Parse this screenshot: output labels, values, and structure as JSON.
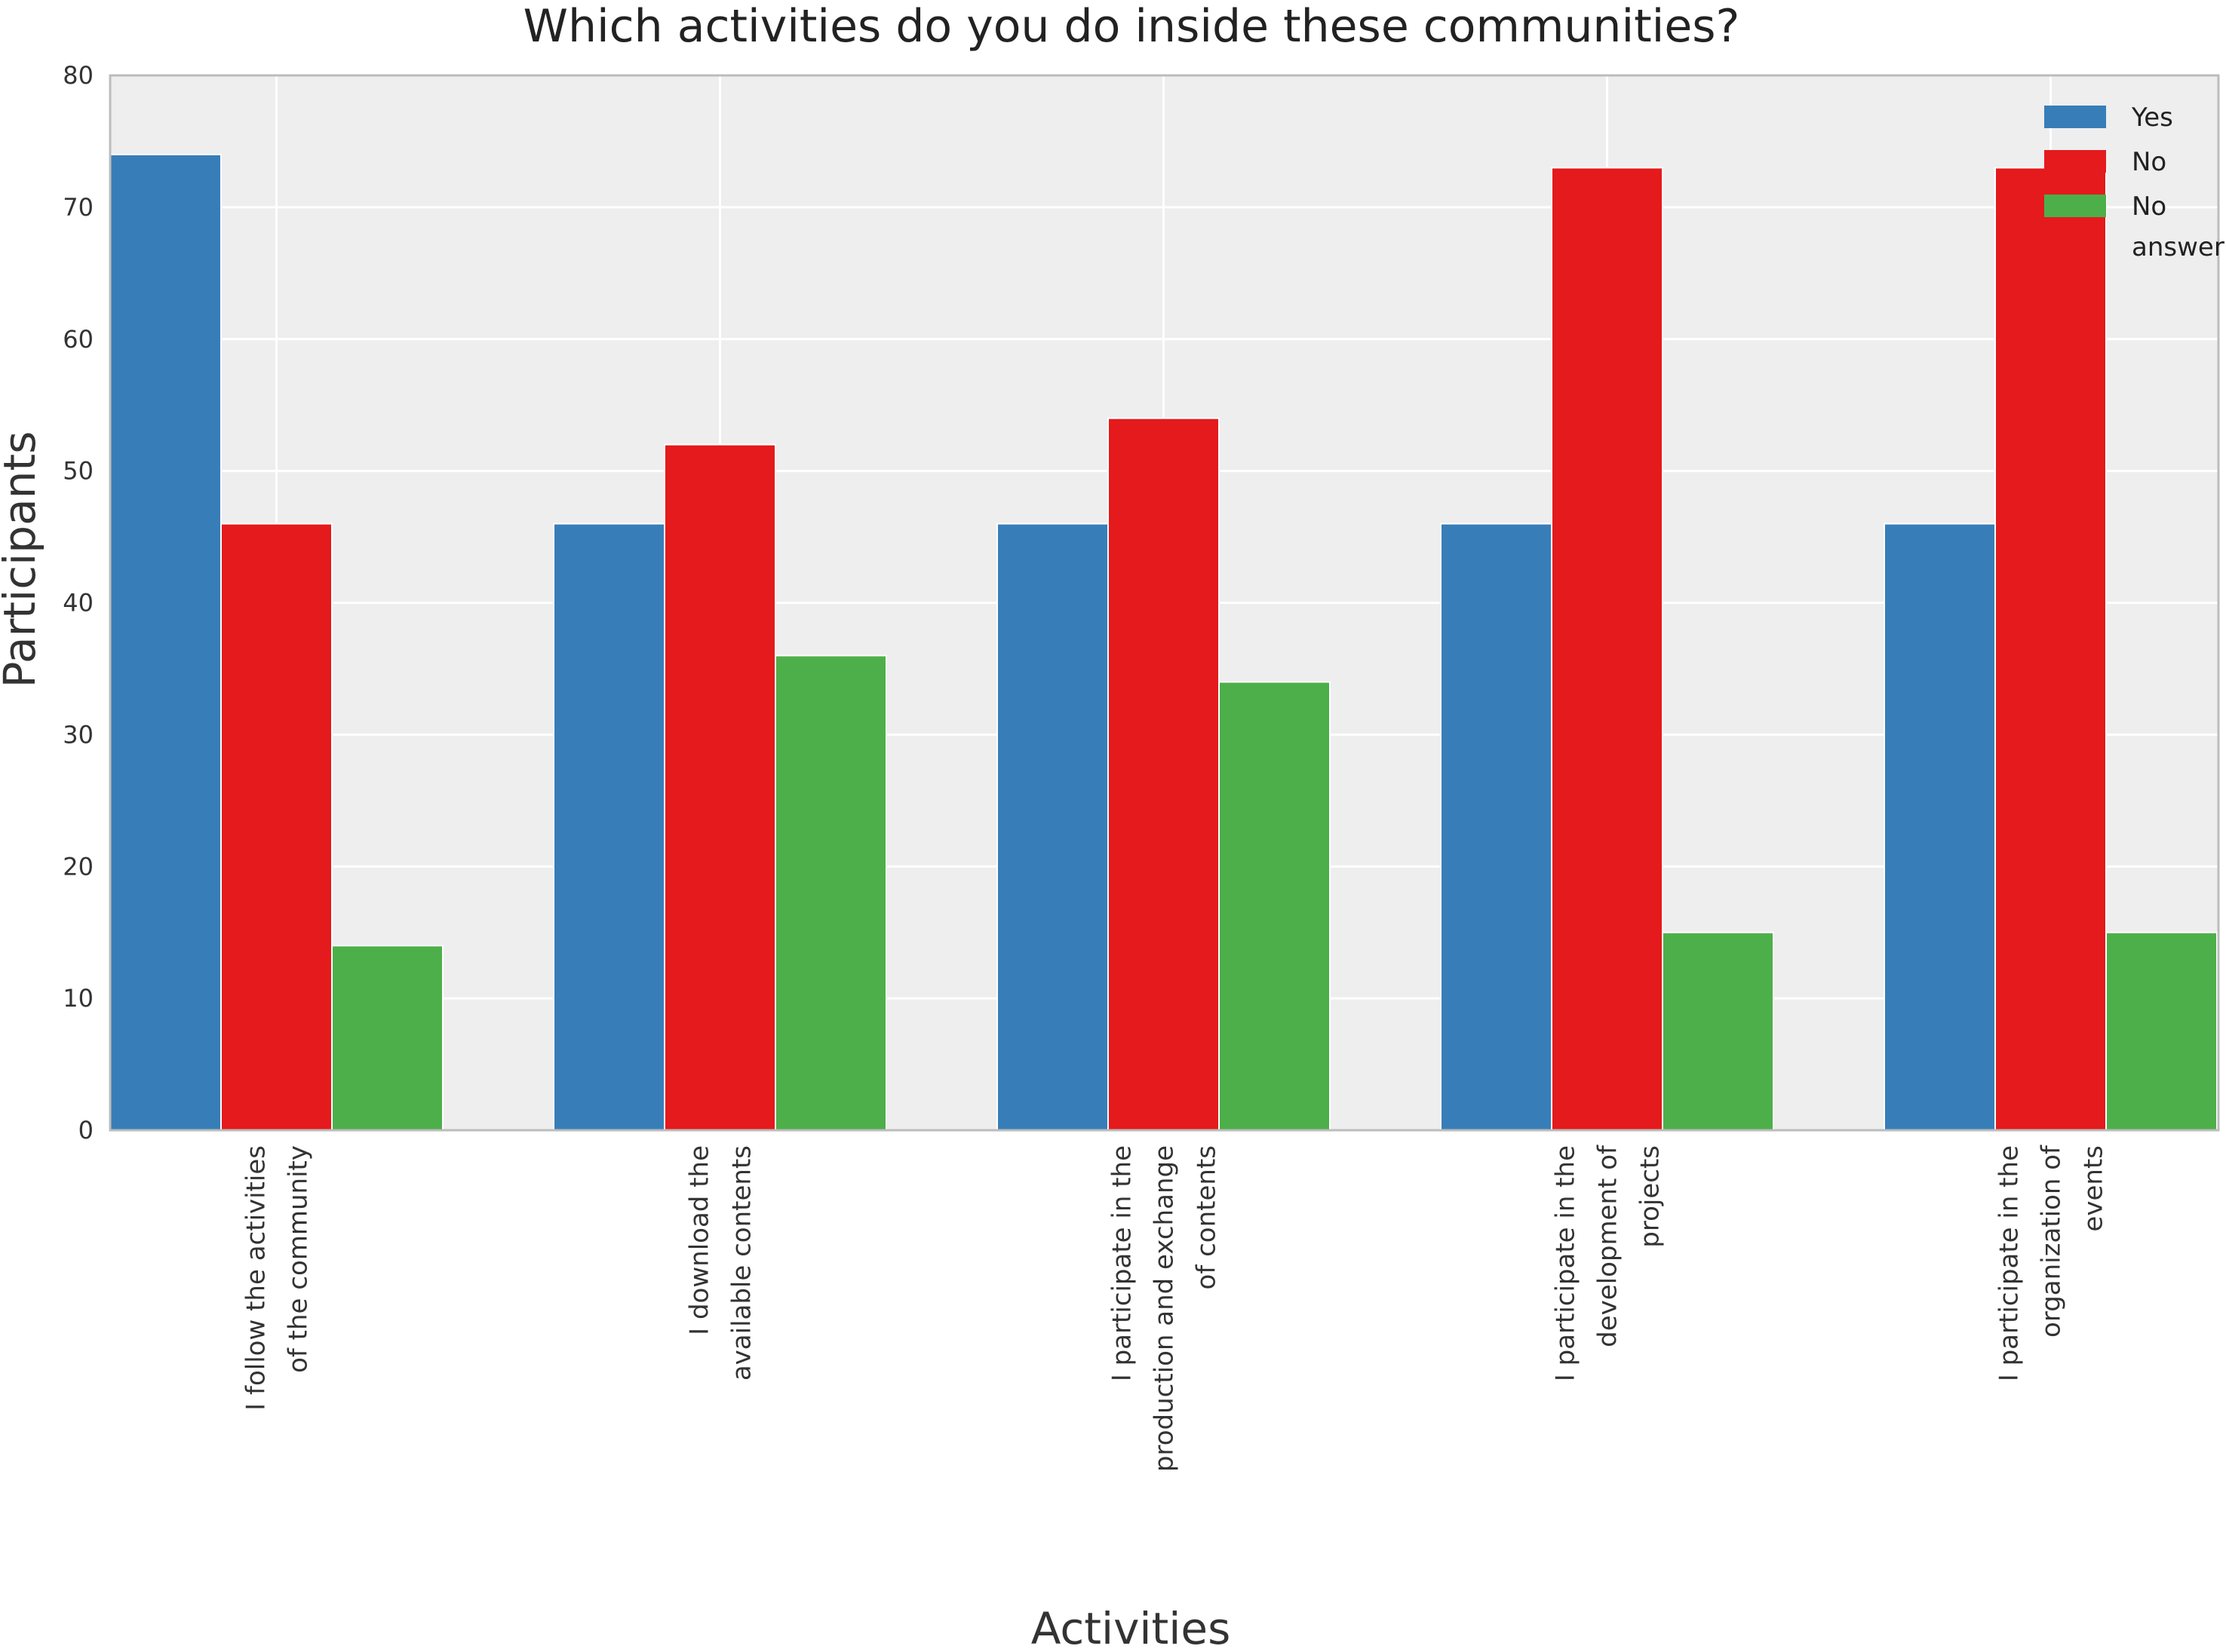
{
  "chart_data": {
    "type": "bar",
    "title": "Which activities do you do inside these communities?",
    "xlabel": "Activities",
    "ylabel": "Participants",
    "ylim": [
      0,
      80
    ],
    "yticks": [
      0,
      10,
      20,
      30,
      40,
      50,
      60,
      70,
      80
    ],
    "grid": true,
    "legend_position": "top-right",
    "categories": [
      [
        "I follow the activities",
        "of the community"
      ],
      [
        "I download the",
        "available contents"
      ],
      [
        "I participate in the",
        "production and exchange",
        "of contents"
      ],
      [
        "I participate in the",
        "development of",
        "projects"
      ],
      [
        "I participate in the",
        "organization of",
        "events"
      ]
    ],
    "series": [
      {
        "name": "Yes",
        "legend_lines": [
          "Yes"
        ],
        "color": "#377eb8",
        "values": [
          74,
          46,
          46,
          46,
          46
        ]
      },
      {
        "name": "No",
        "legend_lines": [
          "No"
        ],
        "color": "#e41a1c",
        "values": [
          46,
          52,
          54,
          73,
          73
        ]
      },
      {
        "name": "No answer",
        "legend_lines": [
          "No",
          "answer"
        ],
        "color": "#4daf4a",
        "values": [
          14,
          36,
          34,
          15,
          15
        ]
      }
    ],
    "background_color": "#eeeeee",
    "grid_color": "#ffffff",
    "axis_color": "#bcbcbc",
    "text_color": "#333333"
  }
}
